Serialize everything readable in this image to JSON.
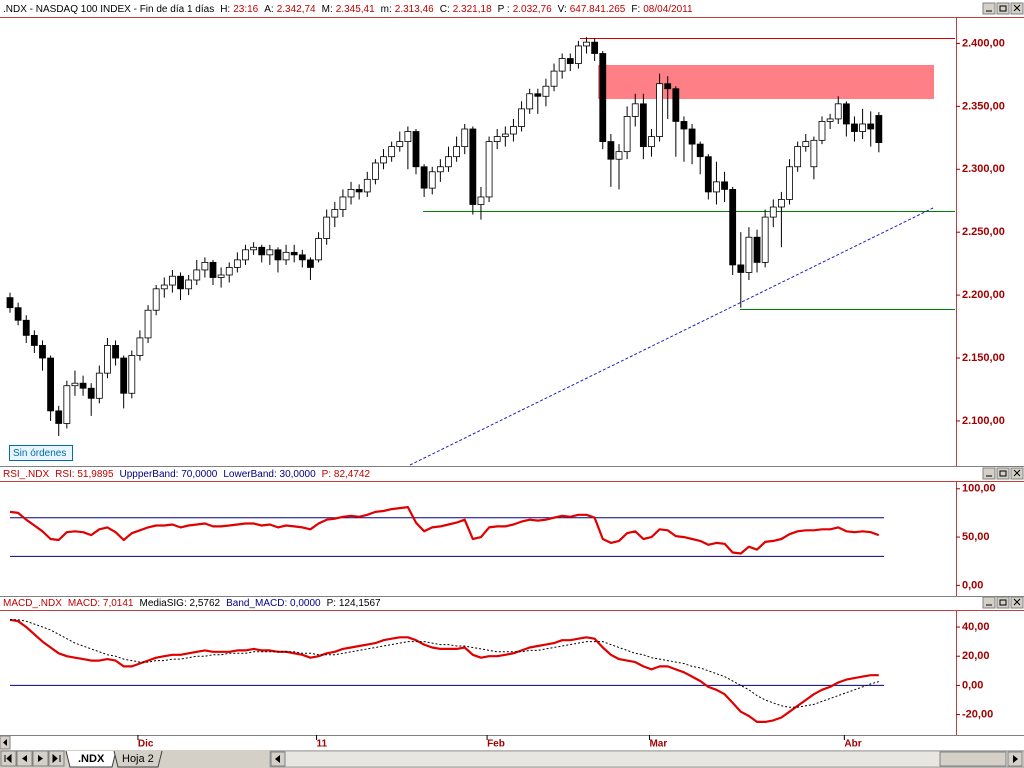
{
  "chart_data": [
    {
      "type": "candlestick",
      "header": [
        {
          "label": ".NDX - NASDAQ 100 INDEX - Fin de día 1 días"
        },
        {
          "label": "H:",
          "value": "23:16"
        },
        {
          "label": "A:",
          "value": "2.342,74"
        },
        {
          "label": "M:",
          "value": "2.345,41"
        },
        {
          "label": "m:",
          "value": "2.313,46"
        },
        {
          "label": "C:",
          "value": "2.321,18"
        },
        {
          "label": "P :",
          "value": "2.032,76"
        },
        {
          "label": "V:",
          "value": "647.841.265"
        },
        {
          "label": "F:",
          "value": "08/04/2011"
        }
      ],
      "categories": [
        null,
        null,
        null,
        null,
        null,
        null,
        null,
        null,
        null,
        null,
        null,
        null,
        null,
        null,
        null,
        null,
        "Dic",
        null,
        null,
        null,
        null,
        null,
        null,
        null,
        null,
        null,
        null,
        null,
        null,
        null,
        null,
        null,
        null,
        null,
        null,
        null,
        null,
        null,
        "11",
        null,
        null,
        null,
        null,
        null,
        null,
        null,
        null,
        null,
        null,
        null,
        null,
        null,
        null,
        null,
        null,
        null,
        null,
        null,
        null,
        "Feb",
        null,
        null,
        null,
        null,
        null,
        null,
        null,
        null,
        null,
        null,
        null,
        null,
        null,
        null,
        null,
        null,
        null,
        null,
        null,
        "Mar",
        null,
        null,
        null,
        null,
        null,
        null,
        null,
        null,
        null,
        null,
        null,
        null,
        null,
        null,
        null,
        null,
        null,
        null,
        null,
        null,
        null,
        null,
        null,
        "Abr",
        null,
        null,
        null,
        null
      ],
      "open": [
        2198,
        2190,
        2180,
        2168,
        2160,
        2150,
        2108,
        2098,
        2128,
        2130,
        2126,
        2118,
        2138,
        2160,
        2150,
        2122,
        2152,
        2166,
        2188,
        2205,
        2208,
        2215,
        2205,
        2212,
        2220,
        2226,
        2214,
        2216,
        2222,
        2228,
        2236,
        2238,
        2232,
        2236,
        2228,
        2234,
        2232,
        2228,
        2228,
        2245,
        2262,
        2268,
        2278,
        2284,
        2282,
        2292,
        2305,
        2310,
        2318,
        2322,
        2330,
        2302,
        2285,
        2298,
        2302,
        2310,
        2318,
        2332,
        2272,
        2278,
        2322,
        2326,
        2328,
        2334,
        2348,
        2360,
        2358,
        2366,
        2378,
        2388,
        2384,
        2398,
        2401,
        2392,
        2322,
        2308,
        2314,
        2342,
        2352,
        2318,
        2326,
        2368,
        2364,
        2338,
        2332,
        2320,
        2310,
        2282,
        2290,
        2284,
        2224,
        2218,
        2246,
        2226,
        2262,
        2270,
        2276,
        2302,
        2318,
        2302,
        2323,
        2338,
        2340,
        2352,
        2336,
        2330,
        2336,
        2342.74
      ],
      "high": [
        2202,
        2194,
        2184,
        2172,
        2164,
        2152,
        2112,
        2132,
        2140,
        2136,
        2130,
        2144,
        2166,
        2164,
        2152,
        2156,
        2172,
        2192,
        2208,
        2214,
        2220,
        2218,
        2216,
        2228,
        2230,
        2228,
        2222,
        2226,
        2234,
        2240,
        2242,
        2240,
        2240,
        2238,
        2240,
        2240,
        2236,
        2230,
        2250,
        2268,
        2274,
        2284,
        2290,
        2288,
        2298,
        2308,
        2316,
        2322,
        2330,
        2334,
        2332,
        2304,
        2302,
        2308,
        2318,
        2326,
        2336,
        2334,
        2286,
        2326,
        2332,
        2334,
        2340,
        2354,
        2364,
        2364,
        2372,
        2384,
        2392,
        2392,
        2402,
        2405,
        2404,
        2394,
        2328,
        2320,
        2350,
        2360,
        2360,
        2332,
        2376,
        2374,
        2366,
        2342,
        2336,
        2322,
        2312,
        2306,
        2298,
        2286,
        2250,
        2254,
        2252,
        2268,
        2276,
        2282,
        2308,
        2322,
        2328,
        2326,
        2342,
        2344,
        2358,
        2354,
        2342,
        2348,
        2346,
        2345.41
      ],
      "low": [
        2186,
        2176,
        2162,
        2154,
        2140,
        2100,
        2088,
        2094,
        2120,
        2120,
        2104,
        2114,
        2134,
        2144,
        2110,
        2118,
        2148,
        2162,
        2184,
        2198,
        2202,
        2196,
        2200,
        2208,
        2214,
        2208,
        2206,
        2210,
        2218,
        2224,
        2232,
        2226,
        2224,
        2218,
        2224,
        2226,
        2222,
        2212,
        2226,
        2240,
        2254,
        2262,
        2272,
        2276,
        2278,
        2288,
        2300,
        2306,
        2314,
        2300,
        2296,
        2278,
        2280,
        2290,
        2298,
        2306,
        2312,
        2264,
        2260,
        2274,
        2316,
        2318,
        2322,
        2330,
        2344,
        2344,
        2350,
        2362,
        2372,
        2378,
        2380,
        2392,
        2386,
        2316,
        2286,
        2284,
        2308,
        2334,
        2308,
        2310,
        2322,
        2340,
        2310,
        2306,
        2304,
        2296,
        2276,
        2272,
        2274,
        2216,
        2190,
        2212,
        2218,
        2222,
        2254,
        2238,
        2272,
        2298,
        2314,
        2292,
        2320,
        2332,
        2336,
        2326,
        2322,
        2324,
        2318,
        2313.46
      ],
      "close": [
        2190,
        2180,
        2168,
        2160,
        2150,
        2108,
        2098,
        2128,
        2130,
        2126,
        2118,
        2138,
        2160,
        2150,
        2122,
        2152,
        2166,
        2188,
        2205,
        2208,
        2215,
        2205,
        2212,
        2220,
        2226,
        2214,
        2216,
        2222,
        2228,
        2236,
        2238,
        2232,
        2236,
        2228,
        2234,
        2232,
        2228,
        2222,
        2245,
        2262,
        2268,
        2278,
        2284,
        2282,
        2292,
        2305,
        2310,
        2318,
        2322,
        2330,
        2302,
        2285,
        2298,
        2302,
        2310,
        2318,
        2332,
        2272,
        2278,
        2322,
        2326,
        2328,
        2334,
        2348,
        2360,
        2358,
        2366,
        2378,
        2388,
        2384,
        2398,
        2401,
        2392,
        2322,
        2308,
        2314,
        2342,
        2352,
        2318,
        2326,
        2368,
        2364,
        2338,
        2332,
        2320,
        2310,
        2282,
        2290,
        2284,
        2224,
        2218,
        2246,
        2226,
        2262,
        2270,
        2276,
        2302,
        2318,
        2322,
        2323,
        2338,
        2340,
        2352,
        2336,
        2330,
        2336,
        2332,
        2321.18
      ],
      "up_color": "#ffffff",
      "down_color": "#000000",
      "ylim": [
        2065,
        2421
      ],
      "yticks": [
        {
          "value": 2100,
          "label": "2.100,00"
        },
        {
          "value": 2150,
          "label": "2.150,00"
        },
        {
          "value": 2200,
          "label": "2.200,00"
        },
        {
          "value": 2250,
          "label": "2.250,00"
        },
        {
          "value": 2300,
          "label": "2.300,00"
        },
        {
          "value": 2350,
          "label": "2.350,00"
        },
        {
          "value": 2400,
          "label": "2.400,00"
        }
      ],
      "annotation": "Sin órdenes"
    },
    {
      "type": "line",
      "header": [
        {
          "label": "RSI_.NDX",
          "color": "#c00000"
        },
        {
          "label": "RSI: 51,9895",
          "color": "#c00000"
        },
        {
          "label": "UppperBand: 70,0000",
          "color": "#000080"
        },
        {
          "label": "LowerBand: 30,0000",
          "color": "#000080"
        },
        {
          "label": "P: 82,4742",
          "color": "#c00000"
        }
      ],
      "series": [
        {
          "name": "RSI",
          "color": "#e00000",
          "values": [
            76,
            75,
            68,
            62,
            56,
            48,
            47,
            55,
            56,
            55,
            52,
            58,
            60,
            55,
            47,
            54,
            57,
            60,
            62,
            62,
            63,
            60,
            62,
            63,
            64,
            61,
            61,
            62,
            63,
            64,
            64,
            62,
            63,
            60,
            62,
            61,
            60,
            58,
            64,
            68,
            69,
            71,
            72,
            71,
            73,
            76,
            77,
            79,
            80,
            81,
            65,
            56,
            60,
            61,
            63,
            65,
            68,
            48,
            50,
            60,
            61,
            61,
            63,
            66,
            68,
            67,
            68,
            70,
            72,
            71,
            73,
            73,
            70,
            48,
            44,
            46,
            54,
            56,
            48,
            50,
            58,
            57,
            51,
            50,
            48,
            46,
            42,
            44,
            43,
            34,
            33,
            40,
            37,
            45,
            46,
            48,
            53,
            56,
            57,
            57,
            58,
            58,
            60,
            56,
            55,
            56,
            55,
            51.9895
          ]
        }
      ],
      "bands": [
        70,
        30
      ],
      "band_color": "#000080",
      "ylim": [
        -11,
        107
      ],
      "yticks": [
        {
          "value": 0,
          "label": "0,00"
        },
        {
          "value": 50,
          "label": "50,00"
        },
        {
          "value": 100,
          "label": "100,00"
        }
      ]
    },
    {
      "type": "line",
      "header": [
        {
          "label": "MACD_.NDX",
          "color": "#c00000"
        },
        {
          "label": "MACD: 7,0141",
          "color": "#c00000"
        },
        {
          "label": "MediaSIG: 2,5762",
          "color": "#000000"
        },
        {
          "label": "Band_MACD: 0,0000",
          "color": "#000080"
        },
        {
          "label": "P: 124,1567",
          "color": "#000000"
        }
      ],
      "series": [
        {
          "name": "MACD",
          "color": "#e00000",
          "values": [
            45,
            44,
            40,
            35,
            30,
            26,
            22,
            20,
            19,
            18,
            17,
            17,
            18,
            17,
            13,
            13,
            15,
            17,
            19,
            20,
            21,
            21,
            22,
            23,
            24,
            23,
            23,
            23,
            24,
            24,
            25,
            24,
            24,
            23,
            23,
            22,
            21,
            19,
            20,
            22,
            23,
            25,
            26,
            27,
            28,
            29,
            31,
            32,
            33,
            33,
            31,
            28,
            26,
            25,
            25,
            25,
            26,
            21,
            19,
            20,
            20,
            21,
            22,
            24,
            26,
            27,
            28,
            29,
            31,
            31,
            32,
            33,
            32,
            26,
            21,
            18,
            17,
            16,
            13,
            11,
            13,
            13,
            11,
            9,
            6,
            3,
            -1,
            -3,
            -6,
            -12,
            -18,
            -21,
            -25,
            -25,
            -24,
            -22,
            -18,
            -14,
            -10,
            -6,
            -3,
            -1,
            2,
            4,
            5,
            6,
            7,
            7.0141
          ]
        },
        {
          "name": "MediaSIG",
          "color": "#000000",
          "dashed": true,
          "values": [
            45,
            45,
            44,
            42,
            40,
            38,
            35,
            32,
            29,
            27,
            25,
            23,
            21,
            20,
            18,
            17,
            16,
            16,
            17,
            17,
            18,
            18,
            19,
            20,
            20,
            21,
            21,
            22,
            22,
            22,
            23,
            23,
            23,
            23,
            23,
            23,
            22,
            22,
            21,
            21,
            21,
            22,
            23,
            24,
            25,
            26,
            27,
            28,
            29,
            30,
            30,
            30,
            29,
            28,
            28,
            27,
            27,
            26,
            25,
            24,
            23,
            23,
            23,
            23,
            24,
            24,
            25,
            26,
            27,
            28,
            29,
            30,
            30,
            30,
            28,
            26,
            24,
            22,
            21,
            19,
            18,
            17,
            16,
            15,
            13,
            12,
            10,
            8,
            6,
            3,
            0,
            -3,
            -7,
            -10,
            -12,
            -14,
            -15,
            -15,
            -14,
            -13,
            -11,
            -9,
            -7,
            -5,
            -3,
            -1,
            1,
            2.5762
          ]
        }
      ],
      "bands": [
        0
      ],
      "band_color": "#000080",
      "ylim": [
        -34,
        51
      ],
      "yticks": [
        {
          "value": -20,
          "label": "-20,00"
        },
        {
          "value": 0,
          "label": "0,00"
        },
        {
          "value": 20,
          "label": "20,00"
        },
        {
          "value": 40,
          "label": "40,00"
        }
      ]
    }
  ],
  "tabs": [
    ".NDX",
    "Hoja 2"
  ]
}
